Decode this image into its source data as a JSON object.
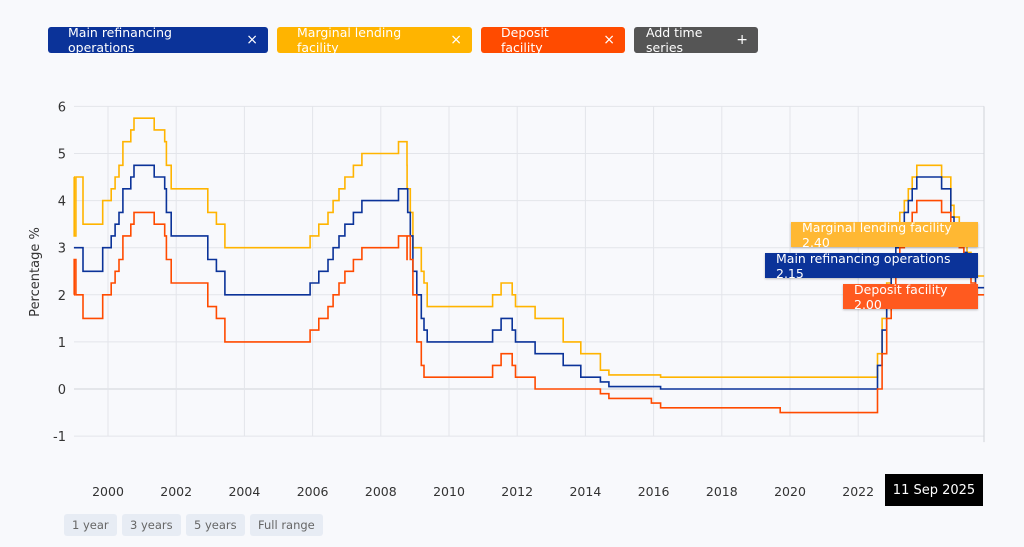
{
  "legend": {
    "chips": [
      {
        "label": "Main refinancing operations",
        "remove": "×",
        "color": "#0b3399"
      },
      {
        "label": "Marginal lending facility",
        "remove": "×",
        "color": "#ffb400"
      },
      {
        "label": "Deposit facility",
        "remove": "×",
        "color": "#ff4b00"
      }
    ],
    "add": {
      "label": "Add time series",
      "icon": "+",
      "color": "#555555"
    }
  },
  "tooltips": {
    "mlf": "Marginal lending facility 2.40",
    "mro": "Main refinancing operations 2.15",
    "df": "Deposit facility 2.00"
  },
  "cursor_date": "11 Sep 2025",
  "range_buttons": [
    "1 year",
    "3 years",
    "5 years",
    "Full range"
  ],
  "chart_data": {
    "type": "line",
    "step": true,
    "ylabel": "Percentage %",
    "ylim": [
      -1,
      6
    ],
    "yticks": [
      "6",
      "5",
      "4",
      "3",
      "2",
      "1",
      "0",
      "-1"
    ],
    "xlim": [
      "1999-01-01",
      "2025-09-11"
    ],
    "xticks": [
      "2000",
      "2002",
      "2004",
      "2006",
      "2008",
      "2010",
      "2012",
      "2014",
      "2016",
      "2018",
      "2020",
      "2022"
    ],
    "grid": true,
    "series": [
      {
        "name": "Marginal lending facility",
        "color": "#ffb400",
        "points": [
          [
            "1999-01-01",
            4.5
          ],
          [
            "1999-01-04",
            3.25
          ],
          [
            "1999-01-22",
            4.5
          ],
          [
            "1999-04-09",
            3.5
          ],
          [
            "1999-11-05",
            4.0
          ],
          [
            "2000-02-04",
            4.25
          ],
          [
            "2000-03-17",
            4.5
          ],
          [
            "2000-04-28",
            4.75
          ],
          [
            "2000-06-09",
            5.25
          ],
          [
            "2000-09-01",
            5.5
          ],
          [
            "2000-10-06",
            5.75
          ],
          [
            "2001-05-11",
            5.5
          ],
          [
            "2001-08-31",
            5.25
          ],
          [
            "2001-09-18",
            4.75
          ],
          [
            "2001-11-09",
            4.25
          ],
          [
            "2002-12-06",
            3.75
          ],
          [
            "2003-03-07",
            3.5
          ],
          [
            "2003-06-06",
            3.0
          ],
          [
            "2005-12-06",
            3.25
          ],
          [
            "2006-03-08",
            3.5
          ],
          [
            "2006-06-15",
            3.75
          ],
          [
            "2006-08-09",
            4.0
          ],
          [
            "2006-10-11",
            4.25
          ],
          [
            "2006-12-13",
            4.5
          ],
          [
            "2007-03-14",
            4.75
          ],
          [
            "2007-06-13",
            5.0
          ],
          [
            "2008-07-09",
            5.25
          ],
          [
            "2008-10-08",
            4.75
          ],
          [
            "2008-10-09",
            4.25
          ],
          [
            "2008-11-12",
            3.75
          ],
          [
            "2008-12-10",
            3.0
          ],
          [
            "2009-03-11",
            2.5
          ],
          [
            "2009-04-08",
            2.25
          ],
          [
            "2009-05-13",
            1.75
          ],
          [
            "2011-04-13",
            2.0
          ],
          [
            "2011-07-13",
            2.25
          ],
          [
            "2011-11-09",
            2.0
          ],
          [
            "2011-12-14",
            1.75
          ],
          [
            "2012-07-11",
            1.5
          ],
          [
            "2013-05-08",
            1.0
          ],
          [
            "2013-11-13",
            0.75
          ],
          [
            "2014-06-11",
            0.4
          ],
          [
            "2014-09-10",
            0.3
          ],
          [
            "2016-03-16",
            0.25
          ],
          [
            "2022-07-27",
            0.75
          ],
          [
            "2022-09-14",
            1.5
          ],
          [
            "2022-11-02",
            2.25
          ],
          [
            "2022-12-21",
            2.75
          ],
          [
            "2023-02-08",
            3.25
          ],
          [
            "2023-03-22",
            3.75
          ],
          [
            "2023-05-10",
            4.0
          ],
          [
            "2023-06-21",
            4.25
          ],
          [
            "2023-08-02",
            4.5
          ],
          [
            "2023-09-20",
            4.75
          ],
          [
            "2024-06-12",
            4.5
          ],
          [
            "2024-09-18",
            3.9
          ],
          [
            "2024-10-23",
            3.65
          ],
          [
            "2024-12-18",
            3.4
          ],
          [
            "2025-02-05",
            3.15
          ],
          [
            "2025-03-12",
            2.9
          ],
          [
            "2025-04-23",
            2.65
          ],
          [
            "2025-06-11",
            2.4
          ]
        ]
      },
      {
        "name": "Main refinancing operations",
        "color": "#0b3399",
        "points": [
          [
            "1999-01-01",
            3.0
          ],
          [
            "1999-04-09",
            2.5
          ],
          [
            "1999-11-05",
            3.0
          ],
          [
            "2000-02-04",
            3.25
          ],
          [
            "2000-03-17",
            3.5
          ],
          [
            "2000-04-28",
            3.75
          ],
          [
            "2000-06-09",
            4.25
          ],
          [
            "2000-09-01",
            4.5
          ],
          [
            "2000-10-06",
            4.75
          ],
          [
            "2001-05-11",
            4.5
          ],
          [
            "2001-08-31",
            4.25
          ],
          [
            "2001-09-18",
            3.75
          ],
          [
            "2001-11-09",
            3.25
          ],
          [
            "2002-12-06",
            2.75
          ],
          [
            "2003-03-07",
            2.5
          ],
          [
            "2003-06-06",
            2.0
          ],
          [
            "2005-12-06",
            2.25
          ],
          [
            "2006-03-08",
            2.5
          ],
          [
            "2006-06-15",
            2.75
          ],
          [
            "2006-08-09",
            3.0
          ],
          [
            "2006-10-11",
            3.25
          ],
          [
            "2006-12-13",
            3.5
          ],
          [
            "2007-03-14",
            3.75
          ],
          [
            "2007-06-13",
            4.0
          ],
          [
            "2008-07-09",
            4.25
          ],
          [
            "2008-10-15",
            3.75
          ],
          [
            "2008-11-12",
            3.25
          ],
          [
            "2008-12-10",
            2.5
          ],
          [
            "2009-01-21",
            2.0
          ],
          [
            "2009-03-11",
            1.5
          ],
          [
            "2009-04-08",
            1.25
          ],
          [
            "2009-05-13",
            1.0
          ],
          [
            "2011-04-13",
            1.25
          ],
          [
            "2011-07-13",
            1.5
          ],
          [
            "2011-11-09",
            1.25
          ],
          [
            "2011-12-14",
            1.0
          ],
          [
            "2012-07-11",
            0.75
          ],
          [
            "2013-05-08",
            0.5
          ],
          [
            "2013-11-13",
            0.25
          ],
          [
            "2014-06-11",
            0.15
          ],
          [
            "2014-09-10",
            0.05
          ],
          [
            "2016-03-16",
            0.0
          ],
          [
            "2022-07-27",
            0.5
          ],
          [
            "2022-09-14",
            1.25
          ],
          [
            "2022-11-02",
            2.0
          ],
          [
            "2022-12-21",
            2.5
          ],
          [
            "2023-02-08",
            3.0
          ],
          [
            "2023-03-22",
            3.5
          ],
          [
            "2023-05-10",
            3.75
          ],
          [
            "2023-06-21",
            4.0
          ],
          [
            "2023-08-02",
            4.25
          ],
          [
            "2023-09-20",
            4.5
          ],
          [
            "2024-06-12",
            4.25
          ],
          [
            "2024-09-18",
            3.65
          ],
          [
            "2024-10-23",
            3.4
          ],
          [
            "2024-12-18",
            3.15
          ],
          [
            "2025-02-05",
            2.9
          ],
          [
            "2025-03-12",
            2.65
          ],
          [
            "2025-04-23",
            2.4
          ],
          [
            "2025-06-11",
            2.15
          ]
        ]
      },
      {
        "name": "Deposit facility",
        "color": "#ff4b00",
        "points": [
          [
            "1999-01-01",
            2.0
          ],
          [
            "1999-01-04",
            2.75
          ],
          [
            "1999-01-22",
            2.0
          ],
          [
            "1999-04-09",
            1.5
          ],
          [
            "1999-11-05",
            2.0
          ],
          [
            "2000-02-04",
            2.25
          ],
          [
            "2000-03-17",
            2.5
          ],
          [
            "2000-04-28",
            2.75
          ],
          [
            "2000-06-09",
            3.25
          ],
          [
            "2000-09-01",
            3.5
          ],
          [
            "2000-10-06",
            3.75
          ],
          [
            "2001-05-11",
            3.5
          ],
          [
            "2001-08-31",
            3.25
          ],
          [
            "2001-09-18",
            2.75
          ],
          [
            "2001-11-09",
            2.25
          ],
          [
            "2002-12-06",
            1.75
          ],
          [
            "2003-03-07",
            1.5
          ],
          [
            "2003-06-06",
            1.0
          ],
          [
            "2005-12-06",
            1.25
          ],
          [
            "2006-03-08",
            1.5
          ],
          [
            "2006-06-15",
            1.75
          ],
          [
            "2006-08-09",
            2.0
          ],
          [
            "2006-10-11",
            2.25
          ],
          [
            "2006-12-13",
            2.5
          ],
          [
            "2007-03-14",
            2.75
          ],
          [
            "2007-06-13",
            3.0
          ],
          [
            "2008-07-09",
            3.25
          ],
          [
            "2008-10-08",
            2.75
          ],
          [
            "2008-10-09",
            3.25
          ],
          [
            "2008-11-12",
            2.75
          ],
          [
            "2008-12-10",
            2.0
          ],
          [
            "2009-01-21",
            1.0
          ],
          [
            "2009-03-11",
            0.5
          ],
          [
            "2009-04-08",
            0.25
          ],
          [
            "2011-04-13",
            0.5
          ],
          [
            "2011-07-13",
            0.75
          ],
          [
            "2011-11-09",
            0.5
          ],
          [
            "2011-12-14",
            0.25
          ],
          [
            "2012-07-11",
            0.0
          ],
          [
            "2014-06-11",
            -0.1
          ],
          [
            "2014-09-10",
            -0.2
          ],
          [
            "2015-12-09",
            -0.3
          ],
          [
            "2016-03-16",
            -0.4
          ],
          [
            "2019-09-18",
            -0.5
          ],
          [
            "2022-07-27",
            0.0
          ],
          [
            "2022-09-14",
            0.75
          ],
          [
            "2022-11-02",
            1.5
          ],
          [
            "2022-12-21",
            2.0
          ],
          [
            "2023-02-08",
            2.5
          ],
          [
            "2023-03-22",
            3.0
          ],
          [
            "2023-05-10",
            3.25
          ],
          [
            "2023-06-21",
            3.5
          ],
          [
            "2023-08-02",
            3.75
          ],
          [
            "2023-09-20",
            4.0
          ],
          [
            "2024-06-12",
            3.75
          ],
          [
            "2024-09-18",
            3.5
          ],
          [
            "2024-10-23",
            3.25
          ],
          [
            "2024-12-18",
            3.0
          ],
          [
            "2025-02-05",
            2.75
          ],
          [
            "2025-03-12",
            2.5
          ],
          [
            "2025-04-23",
            2.25
          ],
          [
            "2025-06-11",
            2.0
          ]
        ]
      }
    ]
  }
}
